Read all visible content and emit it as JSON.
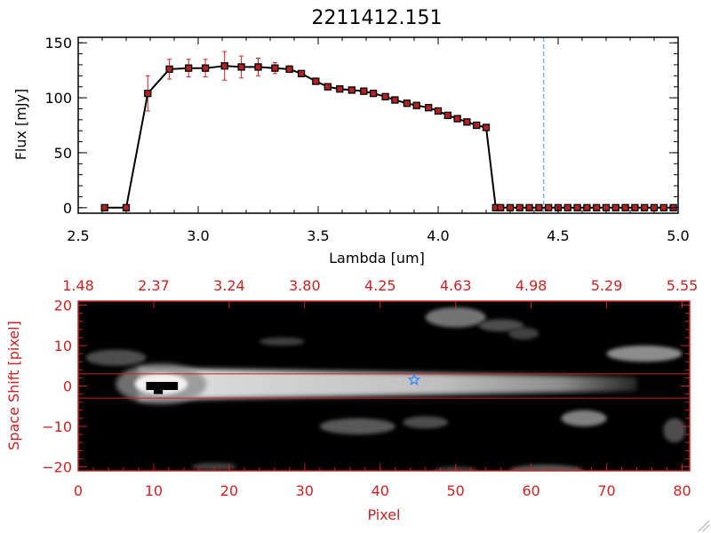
{
  "chart_data": [
    {
      "type": "line",
      "title": "2211412.151",
      "xlabel": "Lambda [um]",
      "ylabel": "Flux [mJy]",
      "xlim": [
        2.5,
        5.0
      ],
      "ylim": [
        -5,
        155
      ],
      "xticks": [
        2.5,
        3.0,
        3.5,
        4.0,
        4.5,
        5.0
      ],
      "xtick_labels": [
        "2.5",
        "3.0",
        "3.5",
        "4.0",
        "4.5",
        "5.0"
      ],
      "yticks": [
        0,
        50,
        100,
        150
      ],
      "ytick_labels": [
        "0",
        "50",
        "100",
        "150"
      ],
      "vline_x": 4.44,
      "colors": {
        "line": "#000000",
        "marker": "#b22222",
        "error": "#cc2222",
        "vline": "#3399cc"
      },
      "series": [
        {
          "x": [
            2.61,
            2.7,
            2.79,
            2.88,
            2.96,
            3.03,
            3.11,
            3.18,
            3.25,
            3.32,
            3.38,
            3.43,
            3.49,
            3.54,
            3.59,
            3.64,
            3.69,
            3.73,
            3.78,
            3.82,
            3.87,
            3.91,
            3.96,
            4.0,
            4.04,
            4.08,
            4.12,
            4.16,
            4.2,
            4.24,
            4.26,
            4.3,
            4.34,
            4.38,
            4.42,
            4.46,
            4.5,
            4.54,
            4.58,
            4.62,
            4.66,
            4.7,
            4.74,
            4.78,
            4.82,
            4.86,
            4.9,
            4.94,
            4.98
          ],
          "y": [
            0,
            0,
            104,
            126,
            127,
            127,
            129,
            128,
            128,
            127,
            126,
            122,
            115,
            110,
            108,
            107,
            106,
            104,
            101,
            98,
            95,
            93,
            91,
            88,
            84,
            81,
            78,
            75,
            73,
            0,
            0,
            0,
            0,
            0,
            0,
            0,
            0,
            0,
            0,
            0,
            0,
            0,
            0,
            0,
            0,
            0,
            0,
            0,
            0
          ],
          "yerr": [
            0,
            0,
            16,
            9,
            8,
            8,
            13,
            10,
            8,
            5,
            3,
            2,
            2,
            1,
            1,
            1,
            1,
            1,
            1,
            1,
            1,
            1,
            1,
            1,
            1,
            1,
            1,
            1,
            1,
            0,
            0,
            0,
            0,
            0,
            0,
            0,
            0,
            0,
            0,
            0,
            0,
            0,
            0,
            0,
            0,
            0,
            0,
            0,
            0
          ]
        }
      ]
    },
    {
      "type": "heatmap",
      "xlabel": "Pixel",
      "ylabel": "Space Shift [pixel]",
      "xlim": [
        0,
        81
      ],
      "ylim": [
        -21,
        21
      ],
      "xticks": [
        0,
        10,
        20,
        30,
        40,
        50,
        60,
        70,
        80
      ],
      "xtick_labels": [
        "0",
        "10",
        "20",
        "30",
        "40",
        "50",
        "60",
        "70",
        "80"
      ],
      "yticks": [
        -20,
        -10,
        0,
        10,
        20
      ],
      "ytick_labels": [
        "−20",
        "−10",
        "0",
        "10",
        "20"
      ],
      "top_tick_labels": [
        "1.48",
        "2.37",
        "3.24",
        "3.80",
        "4.25",
        "4.63",
        "4.98",
        "5.29",
        "5.55"
      ],
      "hlines_y": [
        3,
        -3
      ],
      "star": {
        "x": 44.5,
        "y": 1.5
      },
      "trace": {
        "x_start": 8,
        "x_end": 74,
        "y_center": 0.5,
        "half_width": 2.5
      },
      "blobs": [
        {
          "x": 50,
          "y": 17,
          "rx": 4,
          "ry": 2.5,
          "level": 0.45
        },
        {
          "x": 56,
          "y": 15,
          "rx": 3,
          "ry": 1.5,
          "level": 0.3
        },
        {
          "x": 75,
          "y": 8,
          "rx": 5,
          "ry": 2,
          "level": 0.55
        },
        {
          "x": 67,
          "y": -8,
          "rx": 3,
          "ry": 2,
          "level": 0.5
        },
        {
          "x": 37,
          "y": -10,
          "rx": 5,
          "ry": 2,
          "level": 0.35
        },
        {
          "x": 46,
          "y": -9,
          "rx": 3,
          "ry": 1.5,
          "level": 0.3
        },
        {
          "x": 27,
          "y": 11,
          "rx": 3,
          "ry": 1,
          "level": 0.25
        },
        {
          "x": 5,
          "y": 7,
          "rx": 4,
          "ry": 2,
          "level": 0.3
        },
        {
          "x": 62,
          "y": -21,
          "rx": 5,
          "ry": 1.5,
          "level": 0.35
        },
        {
          "x": 50,
          "y": -21,
          "rx": 3,
          "ry": 1,
          "level": 0.25
        },
        {
          "x": 18,
          "y": -20,
          "rx": 3,
          "ry": 1,
          "level": 0.25
        },
        {
          "x": 79,
          "y": -11,
          "rx": 1.5,
          "ry": 3,
          "level": 0.3
        },
        {
          "x": 59,
          "y": 13,
          "rx": 2,
          "ry": 1.5,
          "level": 0.25
        }
      ],
      "colors": {
        "axes": "#cc2222",
        "hline": "#cc2222",
        "star": "#3388ff"
      }
    }
  ]
}
